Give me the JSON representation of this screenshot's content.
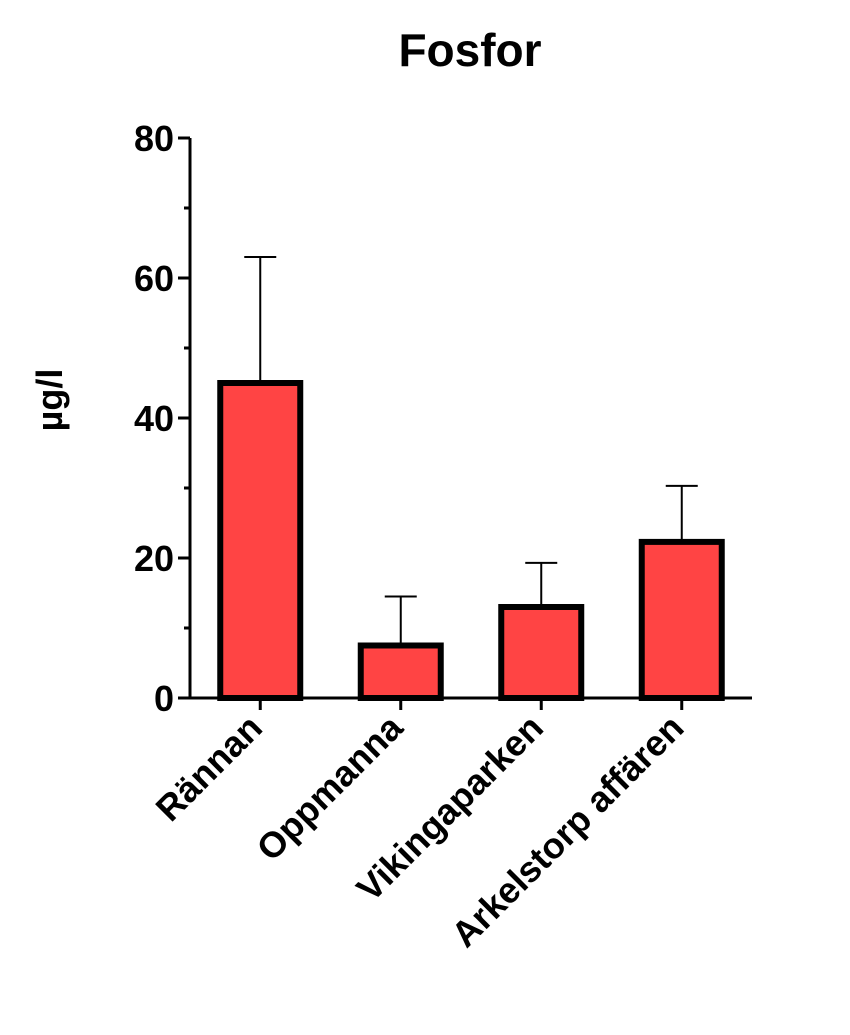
{
  "chart_data": {
    "type": "bar",
    "title": "Fosfor",
    "xlabel": "",
    "ylabel": "µg/l",
    "categories": [
      "Rännan",
      "Oppmanna",
      "Vikingaparken",
      "Arkelstorp affären"
    ],
    "values": [
      45,
      7.5,
      13,
      22.3
    ],
    "errors": [
      18,
      7,
      6.3,
      8
    ],
    "ylim": [
      0,
      80
    ],
    "yticks": [
      0,
      20,
      40,
      60,
      80
    ],
    "ytick_labels": [
      "0",
      "20",
      "40",
      "60",
      "80"
    ],
    "grid": false,
    "bar_color": "#ff4444",
    "edge_color": "#000000"
  }
}
